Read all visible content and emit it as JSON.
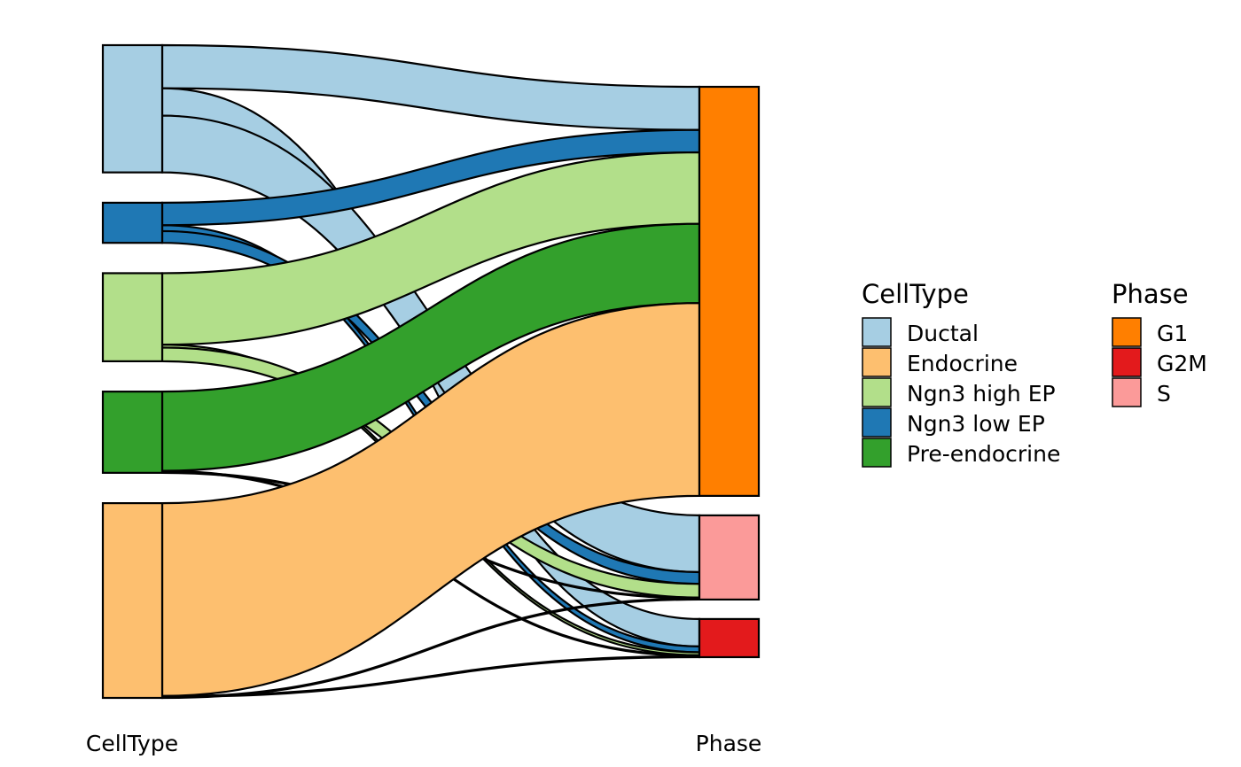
{
  "chart_data": {
    "type": "sankey",
    "axes": [
      "CellType",
      "Phase"
    ],
    "celltype": {
      "label": "CellType",
      "legend_title": "CellType",
      "categories": [
        "Ductal",
        "Ngn3 low EP",
        "Ngn3 high EP",
        "Pre-endocrine",
        "Endocrine"
      ],
      "legend_order": [
        "Ductal",
        "Endocrine",
        "Ngn3 high EP",
        "Ngn3 low EP",
        "Pre-endocrine"
      ],
      "colors": {
        "Ductal": "#A6CEE3",
        "Endocrine": "#FDBF6F",
        "Ngn3 high EP": "#B2DF8A",
        "Ngn3 low EP": "#1F78B4",
        "Pre-endocrine": "#33A02C"
      }
    },
    "phase": {
      "label": "Phase",
      "legend_title": "Phase",
      "categories": [
        "G1",
        "S",
        "G2M"
      ],
      "legend_order": [
        "G1",
        "G2M",
        "S"
      ],
      "colors": {
        "G1": "#FF7F00",
        "G2M": "#E31A1C",
        "S": "#FB9A99"
      }
    },
    "flows": [
      {
        "celltype": "Ductal",
        "phase": "G1",
        "value": 44
      },
      {
        "celltype": "Ductal",
        "phase": "G2M",
        "value": 28
      },
      {
        "celltype": "Ductal",
        "phase": "S",
        "value": 58
      },
      {
        "celltype": "Ngn3 low EP",
        "phase": "G1",
        "value": 23
      },
      {
        "celltype": "Ngn3 low EP",
        "phase": "G2M",
        "value": 6
      },
      {
        "celltype": "Ngn3 low EP",
        "phase": "S",
        "value": 12
      },
      {
        "celltype": "Ngn3 high EP",
        "phase": "G1",
        "value": 73
      },
      {
        "celltype": "Ngn3 high EP",
        "phase": "G2M",
        "value": 3
      },
      {
        "celltype": "Ngn3 high EP",
        "phase": "S",
        "value": 14
      },
      {
        "celltype": "Pre-endocrine",
        "phase": "G1",
        "value": 81
      },
      {
        "celltype": "Pre-endocrine",
        "phase": "G2M",
        "value": 1
      },
      {
        "celltype": "Pre-endocrine",
        "phase": "S",
        "value": 1
      },
      {
        "celltype": "Endocrine",
        "phase": "G1",
        "value": 197
      },
      {
        "celltype": "Endocrine",
        "phase": "G2M",
        "value": 1
      },
      {
        "celltype": "Endocrine",
        "phase": "S",
        "value": 1
      }
    ]
  }
}
